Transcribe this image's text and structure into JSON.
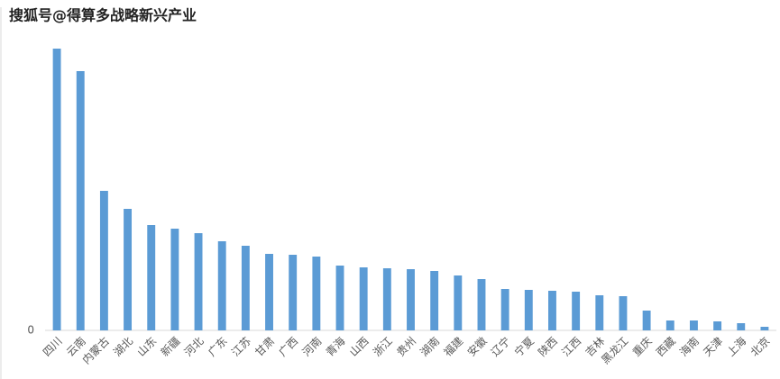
{
  "watermark": "搜狐号@得算多战略新兴产业",
  "chart_data": {
    "type": "bar",
    "categories": [
      "四川",
      "云南",
      "内蒙古",
      "湖北",
      "山东",
      "新疆",
      "河北",
      "广东",
      "江苏",
      "甘肃",
      "广西",
      "河南",
      "青海",
      "山西",
      "浙江",
      "贵州",
      "湖南",
      "福建",
      "安徽",
      "辽宁",
      "宁夏",
      "陕西",
      "江西",
      "吉林",
      "黑龙江",
      "重庆",
      "西藏",
      "海南",
      "天津",
      "上海",
      "北京"
    ],
    "values": [
      313,
      288,
      155,
      135,
      117,
      113,
      108,
      99,
      94,
      85,
      84,
      82,
      72,
      70,
      69,
      68,
      66,
      61,
      57,
      46,
      45,
      44,
      43,
      39,
      38,
      22,
      11,
      11,
      10,
      8,
      4
    ],
    "color": "#5b9bd5",
    "ylim": [
      0,
      320
    ],
    "yticks": [
      0
    ],
    "grid": false
  }
}
